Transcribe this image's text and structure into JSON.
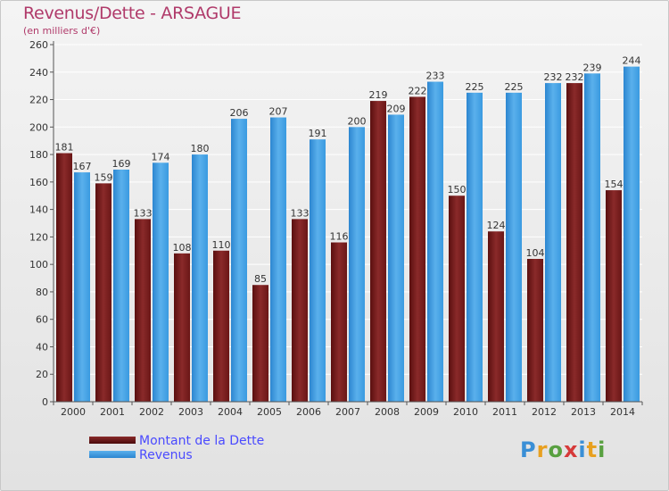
{
  "title": "Revenus/Dette - ARSAGUE",
  "subtitle": "(en milliers d'€)",
  "logo": {
    "letters": [
      "P",
      "r",
      "o",
      "x",
      "i",
      "t",
      "i"
    ],
    "colors": [
      "#3a8fd6",
      "#e8a020",
      "#58a040",
      "#d63a3a",
      "#3a8fd6",
      "#e8a020",
      "#58a040"
    ]
  },
  "chart_data": {
    "type": "bar",
    "title": "Revenus/Dette - ARSAGUE",
    "subtitle": "(en milliers d'€)",
    "categories": [
      "2000",
      "2001",
      "2002",
      "2003",
      "2004",
      "2005",
      "2006",
      "2007",
      "2008",
      "2009",
      "2010",
      "2011",
      "2012",
      "2013",
      "2014"
    ],
    "series": [
      {
        "name": "Montant de la Dette",
        "color": "#7a1e1e",
        "values": [
          181,
          159,
          133,
          108,
          110,
          85,
          133,
          116,
          219,
          222,
          150,
          124,
          104,
          232,
          154
        ]
      },
      {
        "name": "Revenus",
        "color": "#3a9ae0",
        "values": [
          167,
          169,
          174,
          180,
          206,
          207,
          191,
          200,
          209,
          233,
          225,
          225,
          232,
          239,
          244
        ]
      }
    ],
    "ylim": [
      0,
      260
    ],
    "yticks": [
      0,
      20,
      40,
      60,
      80,
      100,
      120,
      140,
      160,
      180,
      200,
      220,
      240,
      260
    ],
    "grid": true,
    "legend": "bottom-left"
  }
}
